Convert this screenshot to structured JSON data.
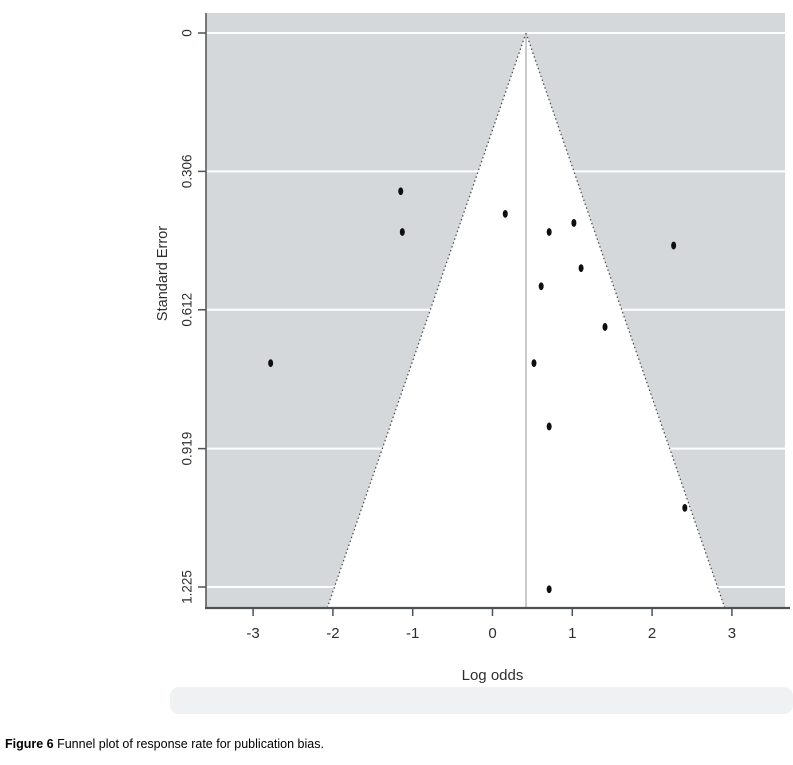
{
  "figure": {
    "caption_label": "Figure 6",
    "caption_text": " Funnel plot of response rate for publication bias."
  },
  "chart_data": {
    "type": "scatter",
    "title": "",
    "xlabel": "Log odds",
    "ylabel": "Standard Error",
    "x_ticks": [
      -3,
      -2,
      -1,
      0,
      1,
      2,
      3
    ],
    "y_ticks": [
      "0",
      "0.306",
      "0.612",
      "0.919",
      "1.225"
    ],
    "y_tick_values": [
      0,
      0.306,
      0.612,
      0.919,
      1.225
    ],
    "xlim": [
      -3.59,
      3.67
    ],
    "ylim": [
      0,
      1.271
    ],
    "y_inverted": true,
    "grid": "horizontal-white-on-gray",
    "legend": "none",
    "funnel": {
      "center_log_odds": 0.42,
      "ci_multiplier": 1.96,
      "max_se": 1.271
    },
    "points": [
      {
        "log_odds": -2.78,
        "se": 0.73
      },
      {
        "log_odds": -1.15,
        "se": 0.35
      },
      {
        "log_odds": -1.13,
        "se": 0.44
      },
      {
        "log_odds": 0.16,
        "se": 0.4
      },
      {
        "log_odds": 0.71,
        "se": 0.44
      },
      {
        "log_odds": 1.02,
        "se": 0.42
      },
      {
        "log_odds": 1.11,
        "se": 0.52
      },
      {
        "log_odds": 0.61,
        "se": 0.56
      },
      {
        "log_odds": 1.41,
        "se": 0.65
      },
      {
        "log_odds": 2.27,
        "se": 0.47
      },
      {
        "log_odds": 0.52,
        "se": 0.73
      },
      {
        "log_odds": 0.71,
        "se": 0.87
      },
      {
        "log_odds": 2.41,
        "se": 1.05
      },
      {
        "log_odds": 0.71,
        "se": 1.23
      }
    ],
    "colors": {
      "plot_background": "#d5d8da",
      "funnel_fill": "#ffffff",
      "gridline": "#fcfdfd",
      "axis_line": "#4f5254",
      "dashed_edge": "#4a4a4a",
      "center_line": "#909496",
      "point": "#0f0f0f",
      "tick_label": "#2e2e2e",
      "watermark_band": "#eff1f3"
    }
  }
}
